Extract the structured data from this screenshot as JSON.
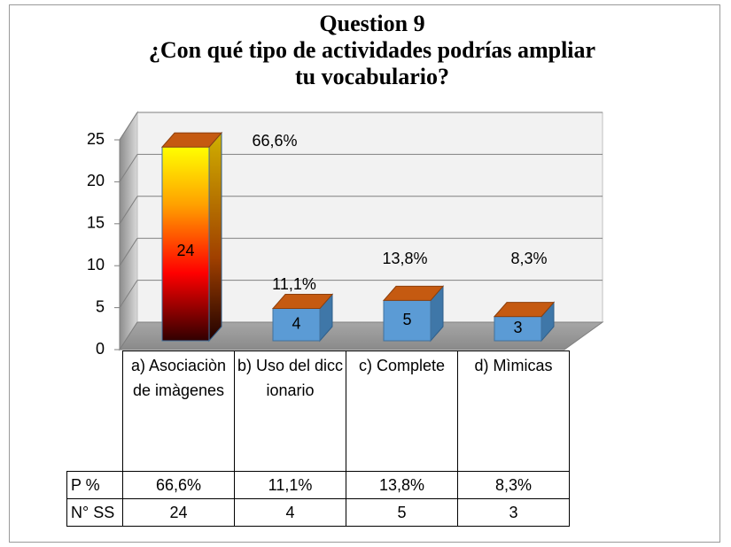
{
  "chart_data": {
    "type": "bar3d",
    "title": "Question 9",
    "subtitle": "¿Con qué tipo de actividades podrías ampliar tu vocabulario?",
    "categories": [
      "a) Asociaciòn de imàgenes",
      "b) Uso del diccionario",
      "c) Complete",
      "d) Mìmicas"
    ],
    "series": [
      {
        "name": "P %",
        "values": [
          66.6,
          11.1,
          13.8,
          8.3
        ],
        "value_labels": [
          "66,6%",
          "11,1%",
          "13,8%",
          "8,3%"
        ]
      },
      {
        "name": "N° SS",
        "values": [
          24,
          4,
          5,
          3
        ],
        "color": "#5b9bd5"
      }
    ],
    "ylim": [
      0,
      25
    ],
    "yticks": [
      0,
      5,
      10,
      15,
      20,
      25
    ],
    "grid": true
  }
}
